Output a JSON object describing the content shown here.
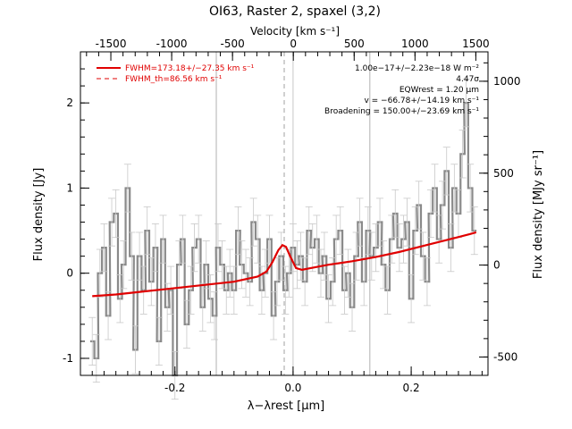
{
  "chart_data": {
    "type": "line",
    "title": "OI63, Raster 2, spaxel (3,2)",
    "xlabel": "λ−λrest [μm]",
    "ylabel": "Flux density [Jy]",
    "x2label": "Velocity [km s⁻¹]",
    "y2label": "Flux density [MJy sr⁻¹]",
    "xlim": [
      -0.36,
      0.33
    ],
    "ylim": [
      -1.2,
      2.6
    ],
    "x2lim": [
      -1750,
      1600
    ],
    "y2lim": [
      -600,
      1160
    ],
    "xticks": [
      "-0.2",
      "0.0",
      "0.2"
    ],
    "xtick_values": [
      -0.2,
      0.0,
      0.2
    ],
    "yticks": [
      "-1",
      "0",
      "1",
      "2"
    ],
    "ytick_values": [
      -1,
      0,
      1,
      2
    ],
    "x2ticks": [
      "-1500",
      "-1000",
      "-500",
      "0",
      "500",
      "1000",
      "1500"
    ],
    "x2tick_values": [
      -1500,
      -1000,
      -500,
      0,
      500,
      1000,
      1500
    ],
    "y2ticks": [
      "-500",
      "0",
      "500",
      "1000"
    ],
    "y2tick_values": [
      -500,
      0,
      500,
      1000
    ],
    "vlines_gray": [
      -0.13,
      0.13
    ],
    "vline_dashed": -0.015,
    "vline_zero": 0.0,
    "legend": {
      "position": "top-left",
      "entries": [
        {
          "label": "FWHM=173.18+/−27.35 km s⁻¹",
          "style": "solid",
          "color": "#e00000"
        },
        {
          "label": "FWHM_th=86.56 km s⁻¹",
          "style": "dashed",
          "color": "#e00000"
        }
      ]
    },
    "annotations": [
      "1.00e−17+/−2.23e−18 W m⁻²",
      "4.47σ",
      "EQWrest = 1.20 μm",
      "v = −66.78+/−14.19 km s⁻¹",
      "Broadening = 150.00+/−23.69 km s⁻¹"
    ],
    "series": [
      {
        "style": "step",
        "color": "#8a8a8a",
        "x": [
          -0.34,
          -0.333,
          -0.327,
          -0.32,
          -0.313,
          -0.307,
          -0.3,
          -0.293,
          -0.287,
          -0.28,
          -0.273,
          -0.267,
          -0.26,
          -0.253,
          -0.247,
          -0.24,
          -0.233,
          -0.227,
          -0.22,
          -0.213,
          -0.207,
          -0.2,
          -0.193,
          -0.187,
          -0.18,
          -0.173,
          -0.167,
          -0.16,
          -0.153,
          -0.147,
          -0.14,
          -0.133,
          -0.127,
          -0.12,
          -0.113,
          -0.107,
          -0.1,
          -0.093,
          -0.087,
          -0.08,
          -0.073,
          -0.067,
          -0.06,
          -0.053,
          -0.047,
          -0.04,
          -0.033,
          -0.027,
          -0.02,
          -0.013,
          -0.007,
          0.0,
          0.007,
          0.013,
          0.02,
          0.027,
          0.033,
          0.04,
          0.047,
          0.053,
          0.06,
          0.067,
          0.073,
          0.08,
          0.087,
          0.093,
          0.1,
          0.107,
          0.113,
          0.12,
          0.127,
          0.133,
          0.14,
          0.147,
          0.153,
          0.16,
          0.167,
          0.173,
          0.18,
          0.187,
          0.193,
          0.2,
          0.207,
          0.213,
          0.22,
          0.227,
          0.233,
          0.24,
          0.247,
          0.253,
          0.26,
          0.267,
          0.273,
          0.28,
          0.287,
          0.293,
          0.3,
          0.307
        ],
        "values": [
          -0.8,
          -1.0,
          0.0,
          0.3,
          -0.5,
          0.6,
          0.7,
          -0.3,
          0.1,
          1.0,
          0.2,
          -0.9,
          0.2,
          -0.2,
          0.5,
          -0.1,
          0.3,
          -0.8,
          0.4,
          -0.4,
          -0.2,
          -1.2,
          0.1,
          0.4,
          -0.6,
          -0.2,
          0.3,
          0.4,
          -0.4,
          0.1,
          -0.3,
          -0.5,
          0.3,
          0.1,
          -0.2,
          0.0,
          -0.2,
          0.5,
          0.1,
          0.0,
          -0.1,
          0.6,
          0.4,
          -0.2,
          0.0,
          0.4,
          -0.5,
          -0.1,
          0.2,
          -0.2,
          0.0,
          0.3,
          0.1,
          0.2,
          -0.1,
          0.5,
          0.3,
          0.4,
          0.0,
          0.2,
          -0.3,
          -0.1,
          0.4,
          0.5,
          -0.2,
          0.0,
          -0.4,
          0.2,
          0.6,
          -0.1,
          0.5,
          0.2,
          0.3,
          0.6,
          0.1,
          -0.2,
          0.4,
          0.7,
          0.3,
          0.4,
          0.6,
          -0.3,
          0.5,
          0.8,
          0.2,
          -0.1,
          0.7,
          1.0,
          0.4,
          0.8,
          1.2,
          0.3,
          1.0,
          0.7,
          1.4,
          2.0,
          1.0,
          0.5
        ],
        "errors": [
          0.28,
          0.28,
          0.28,
          0.28,
          0.28,
          0.28,
          0.28,
          0.28,
          0.28,
          0.28,
          0.28,
          0.28,
          0.28,
          0.28,
          0.28,
          0.28,
          0.28,
          0.28,
          0.28,
          0.28,
          0.28,
          0.28,
          0.28,
          0.28,
          0.28,
          0.28,
          0.28,
          0.28,
          0.28,
          0.28,
          0.28,
          0.28,
          0.28,
          0.28,
          0.28,
          0.28,
          0.28,
          0.28,
          0.28,
          0.28,
          0.28,
          0.28,
          0.28,
          0.28,
          0.28,
          0.28,
          0.28,
          0.28,
          0.28,
          0.28,
          0.28,
          0.28,
          0.28,
          0.28,
          0.28,
          0.28,
          0.28,
          0.28,
          0.28,
          0.28,
          0.28,
          0.28,
          0.28,
          0.28,
          0.28,
          0.28,
          0.28,
          0.28,
          0.28,
          0.28,
          0.28,
          0.28,
          0.28,
          0.28,
          0.28,
          0.28,
          0.28,
          0.28,
          0.28,
          0.28,
          0.28,
          0.28,
          0.28,
          0.28,
          0.28,
          0.28,
          0.28,
          0.28,
          0.28,
          0.28,
          0.28,
          0.28,
          0.28,
          0.28,
          0.28,
          0.28,
          0.28,
          0.28
        ]
      },
      {
        "style": "line",
        "color": "#e00000",
        "x": [
          -0.34,
          -0.3,
          -0.26,
          -0.22,
          -0.18,
          -0.14,
          -0.1,
          -0.06,
          -0.045,
          -0.035,
          -0.025,
          -0.018,
          -0.012,
          -0.005,
          0.005,
          0.015,
          0.03,
          0.06,
          0.1,
          0.14,
          0.18,
          0.22,
          0.26,
          0.3,
          0.31
        ],
        "values": [
          -0.27,
          -0.25,
          -0.22,
          -0.19,
          -0.16,
          -0.13,
          -0.1,
          -0.04,
          0.02,
          0.13,
          0.27,
          0.33,
          0.31,
          0.2,
          0.06,
          0.04,
          0.06,
          0.1,
          0.14,
          0.19,
          0.25,
          0.32,
          0.39,
          0.46,
          0.48
        ]
      }
    ]
  }
}
